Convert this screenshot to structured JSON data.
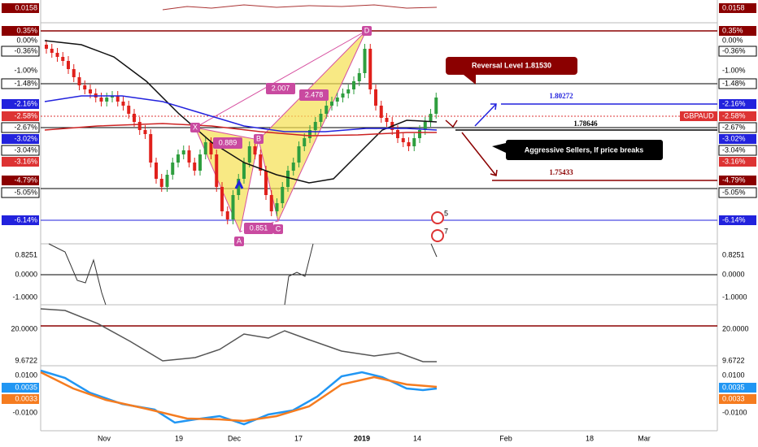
{
  "axis": {
    "left": [
      "0.0158",
      "0.35%",
      "0.00%",
      "-0.36%",
      "-1.00%",
      "-1.48%",
      "-2.16%",
      "-2.58%",
      "-2.67%",
      "-3.02%",
      "-3.04%",
      "-3.16%",
      "-4.79%",
      "-5.05%",
      "-6.14%",
      "0.8251",
      "0.0000",
      "-1.0000",
      "20.0000",
      "9.6722",
      "0.0100",
      "0.0035",
      "0.0033",
      "-0.0100"
    ],
    "right": [
      "0.0158",
      "0.35%",
      "0.00%",
      "-0.36%",
      "-1.00%",
      "-1.48%",
      "-2.16%",
      "-2.58%",
      "-2.67%",
      "-3.02%",
      "-3.04%",
      "-3.16%",
      "-4.79%",
      "-5.05%",
      "-6.14%",
      "0.8251",
      "0.0000",
      "-1.0000",
      "20.0000",
      "9.6722",
      "0.0100",
      "0.0035",
      "0.0033",
      "-0.0100"
    ],
    "x": [
      "Nov",
      "19",
      "Dec",
      "17",
      "2019",
      "14",
      "Feb",
      "18",
      "Mar"
    ]
  },
  "annotations": {
    "reversal": "Reversal Level 1.81530",
    "level_high": "1.80272",
    "level_mid": "1.78646",
    "sellers": "Aggressive Sellers, If price breaks",
    "level_low": "1.75433",
    "symbol": "GBPAUD"
  },
  "pattern": {
    "points": [
      "X",
      "A",
      "B",
      "C",
      "D"
    ],
    "ratios": [
      "0.889",
      "2.007",
      "2.478",
      "0.851"
    ],
    "events": [
      "5",
      "7"
    ]
  }
}
